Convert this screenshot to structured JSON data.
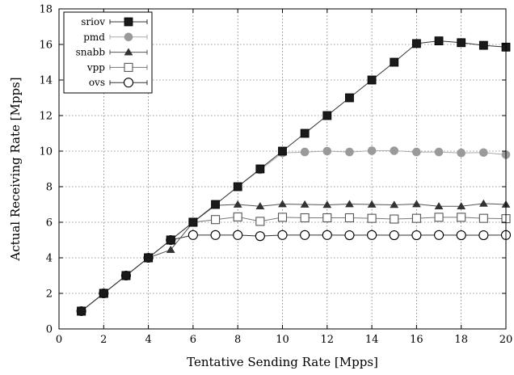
{
  "chart_data": {
    "type": "line",
    "title": "",
    "xlabel": "Tentative Sending Rate [Mpps]",
    "ylabel": "Actual Receiving Rate [Mpps]",
    "xlim": [
      0,
      20
    ],
    "ylim": [
      0,
      18
    ],
    "xticks": [
      0,
      2,
      4,
      6,
      8,
      10,
      12,
      14,
      16,
      18,
      20
    ],
    "yticks": [
      0,
      2,
      4,
      6,
      8,
      10,
      12,
      14,
      16,
      18
    ],
    "grid": true,
    "legend_position": "top-left",
    "x": [
      1,
      2,
      3,
      4,
      5,
      6,
      7,
      8,
      9,
      10,
      11,
      12,
      13,
      14,
      15,
      16,
      17,
      18,
      19,
      20
    ],
    "series": [
      {
        "name": "sriov",
        "marker": "filled-square",
        "color": "#1a1a1a",
        "line_color": "#333333",
        "values": [
          1,
          2,
          3,
          4,
          5,
          6,
          7,
          8,
          9,
          10,
          11,
          12,
          13,
          14,
          15,
          16.05,
          16.2,
          16.1,
          15.95,
          15.85
        ]
      },
      {
        "name": "pmd",
        "marker": "filled-circle",
        "color": "#9a9a9a",
        "line_color": "#aaaaaa",
        "values": [
          1,
          2,
          3,
          4,
          5,
          6,
          7,
          8,
          8.95,
          9.9,
          9.95,
          10.0,
          9.95,
          10.02,
          10.02,
          9.95,
          9.95,
          9.9,
          9.92,
          9.8
        ]
      },
      {
        "name": "snabb",
        "marker": "filled-triangle",
        "color": "#333333",
        "line_color": "#555555",
        "values": [
          1,
          2,
          3,
          4,
          4.45,
          6.0,
          6.95,
          7.0,
          6.9,
          7.02,
          7.0,
          6.98,
          7.02,
          7.0,
          6.98,
          7.02,
          6.9,
          6.9,
          7.05,
          7.0
        ]
      },
      {
        "name": "vpp",
        "marker": "open-square",
        "color": "#555555",
        "line_color": "#777777",
        "values": [
          1,
          2,
          3,
          4,
          5,
          6.0,
          6.15,
          6.3,
          6.05,
          6.28,
          6.25,
          6.25,
          6.25,
          6.22,
          6.18,
          6.22,
          6.28,
          6.28,
          6.22,
          6.2
        ]
      },
      {
        "name": "ovs",
        "marker": "open-circle",
        "color": "#000000",
        "line_color": "#333333",
        "values": [
          1,
          2,
          3,
          4,
          5,
          5.28,
          5.28,
          5.28,
          5.22,
          5.28,
          5.28,
          5.28,
          5.27,
          5.28,
          5.27,
          5.27,
          5.28,
          5.27,
          5.27,
          5.28
        ]
      }
    ]
  }
}
